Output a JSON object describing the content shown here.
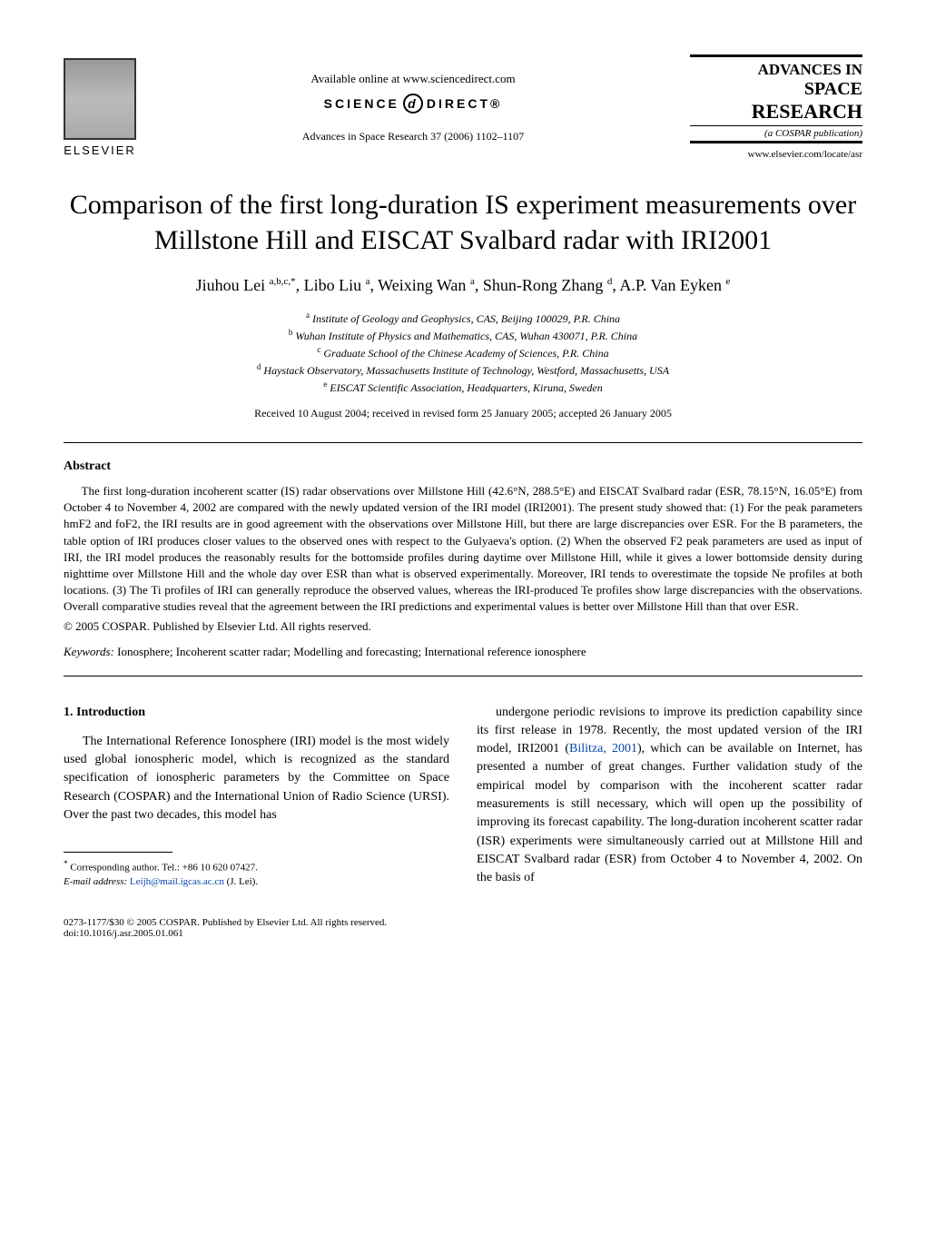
{
  "header": {
    "elsevier_label": "ELSEVIER",
    "available_online": "Available online at www.sciencedirect.com",
    "sciencedirect_prefix": "SCIENCE",
    "sciencedirect_suffix": "DIRECT®",
    "journal_reference": "Advances in Space Research 37 (2006) 1102–1107",
    "journal_name_line1": "ADVANCES IN",
    "journal_name_line2": "SPACE",
    "journal_name_line3": "RESEARCH",
    "journal_subtitle": "(a COSPAR publication)",
    "journal_url": "www.elsevier.com/locate/asr"
  },
  "title": "Comparison of the first long-duration IS experiment measurements over Millstone Hill and EISCAT Svalbard radar with IRI2001",
  "authors_html": "Jiuhou Lei <sup>a,b,c,*</sup>, Libo Liu <sup>a</sup>, Weixing Wan <sup>a</sup>, Shun-Rong Zhang <sup>d</sup>, A.P. Van Eyken <sup>e</sup>",
  "affiliations": {
    "a": "Institute of Geology and Geophysics, CAS, Beijing 100029, P.R. China",
    "b": "Wuhan Institute of Physics and Mathematics, CAS, Wuhan 430071, P.R. China",
    "c": "Graduate School of the Chinese Academy of Sciences, P.R. China",
    "d": "Haystack Observatory, Massachusetts Institute of Technology, Westford, Massachusetts, USA",
    "e": "EISCAT Scientific Association, Headquarters, Kiruna, Sweden"
  },
  "dates": "Received 10 August 2004; received in revised form 25 January 2005; accepted 26 January 2005",
  "abstract": {
    "heading": "Abstract",
    "text": "The first long-duration incoherent scatter (IS) radar observations over Millstone Hill (42.6°N, 288.5°E) and EISCAT Svalbard radar (ESR, 78.15°N, 16.05°E) from October 4 to November 4, 2002 are compared with the newly updated version of the IRI model (IRI2001). The present study showed that: (1) For the peak parameters hmF2 and foF2, the IRI results are in good agreement with the observations over Millstone Hill, but there are large discrepancies over ESR. For the B parameters, the table option of IRI produces closer values to the observed ones with respect to the Gulyaeva's option. (2) When the observed F2 peak parameters are used as input of IRI, the IRI model produces the reasonably results for the bottomside profiles during daytime over Millstone Hill, while it gives a lower bottomside density during nighttime over Millstone Hill and the whole day over ESR than what is observed experimentally. Moreover, IRI tends to overestimate the topside Ne profiles at both locations. (3) The Ti profiles of IRI can generally reproduce the observed values, whereas the IRI-produced Te profiles show large discrepancies with the observations. Overall comparative studies reveal that the agreement between the IRI predictions and experimental values is better over Millstone Hill than that over ESR.",
    "copyright": "© 2005 COSPAR. Published by Elsevier Ltd. All rights reserved."
  },
  "keywords": {
    "label": "Keywords:",
    "text": "Ionosphere; Incoherent scatter radar; Modelling and forecasting; International reference ionosphere"
  },
  "intro": {
    "heading": "1. Introduction",
    "col1": "The International Reference Ionosphere (IRI) model is the most widely used global ionospheric model, which is recognized as the standard specification of ionospheric parameters by the Committee on Space Research (COSPAR) and the International Union of Radio Science (URSI). Over the past two decades, this model has",
    "col2_part1": "undergone periodic revisions to improve its prediction capability since its first release in 1978. Recently, the most updated version of the IRI model, IRI2001 (",
    "col2_link": "Bilitza, 2001",
    "col2_part2": "), which can be available on Internet, has presented a number of great changes. Further validation study of the empirical model by comparison with the incoherent scatter radar measurements is still necessary, which will open up the possibility of improving its forecast capability. The long-duration incoherent scatter radar (ISR) experiments were simultaneously carried out at Millstone Hill and EISCAT Svalbard radar (ESR) from October 4 to November 4, 2002. On the basis of"
  },
  "footnote": {
    "corresponding": "Corresponding author. Tel.: +86 10 620 07427.",
    "email_label": "E-mail address:",
    "email": "Leijh@mail.igcas.ac.cn",
    "email_suffix": "(J. Lei)."
  },
  "footer": {
    "line1": "0273-1177/$30 © 2005 COSPAR. Published by Elsevier Ltd. All rights reserved.",
    "line2": "doi:10.1016/j.asr.2005.01.061"
  }
}
